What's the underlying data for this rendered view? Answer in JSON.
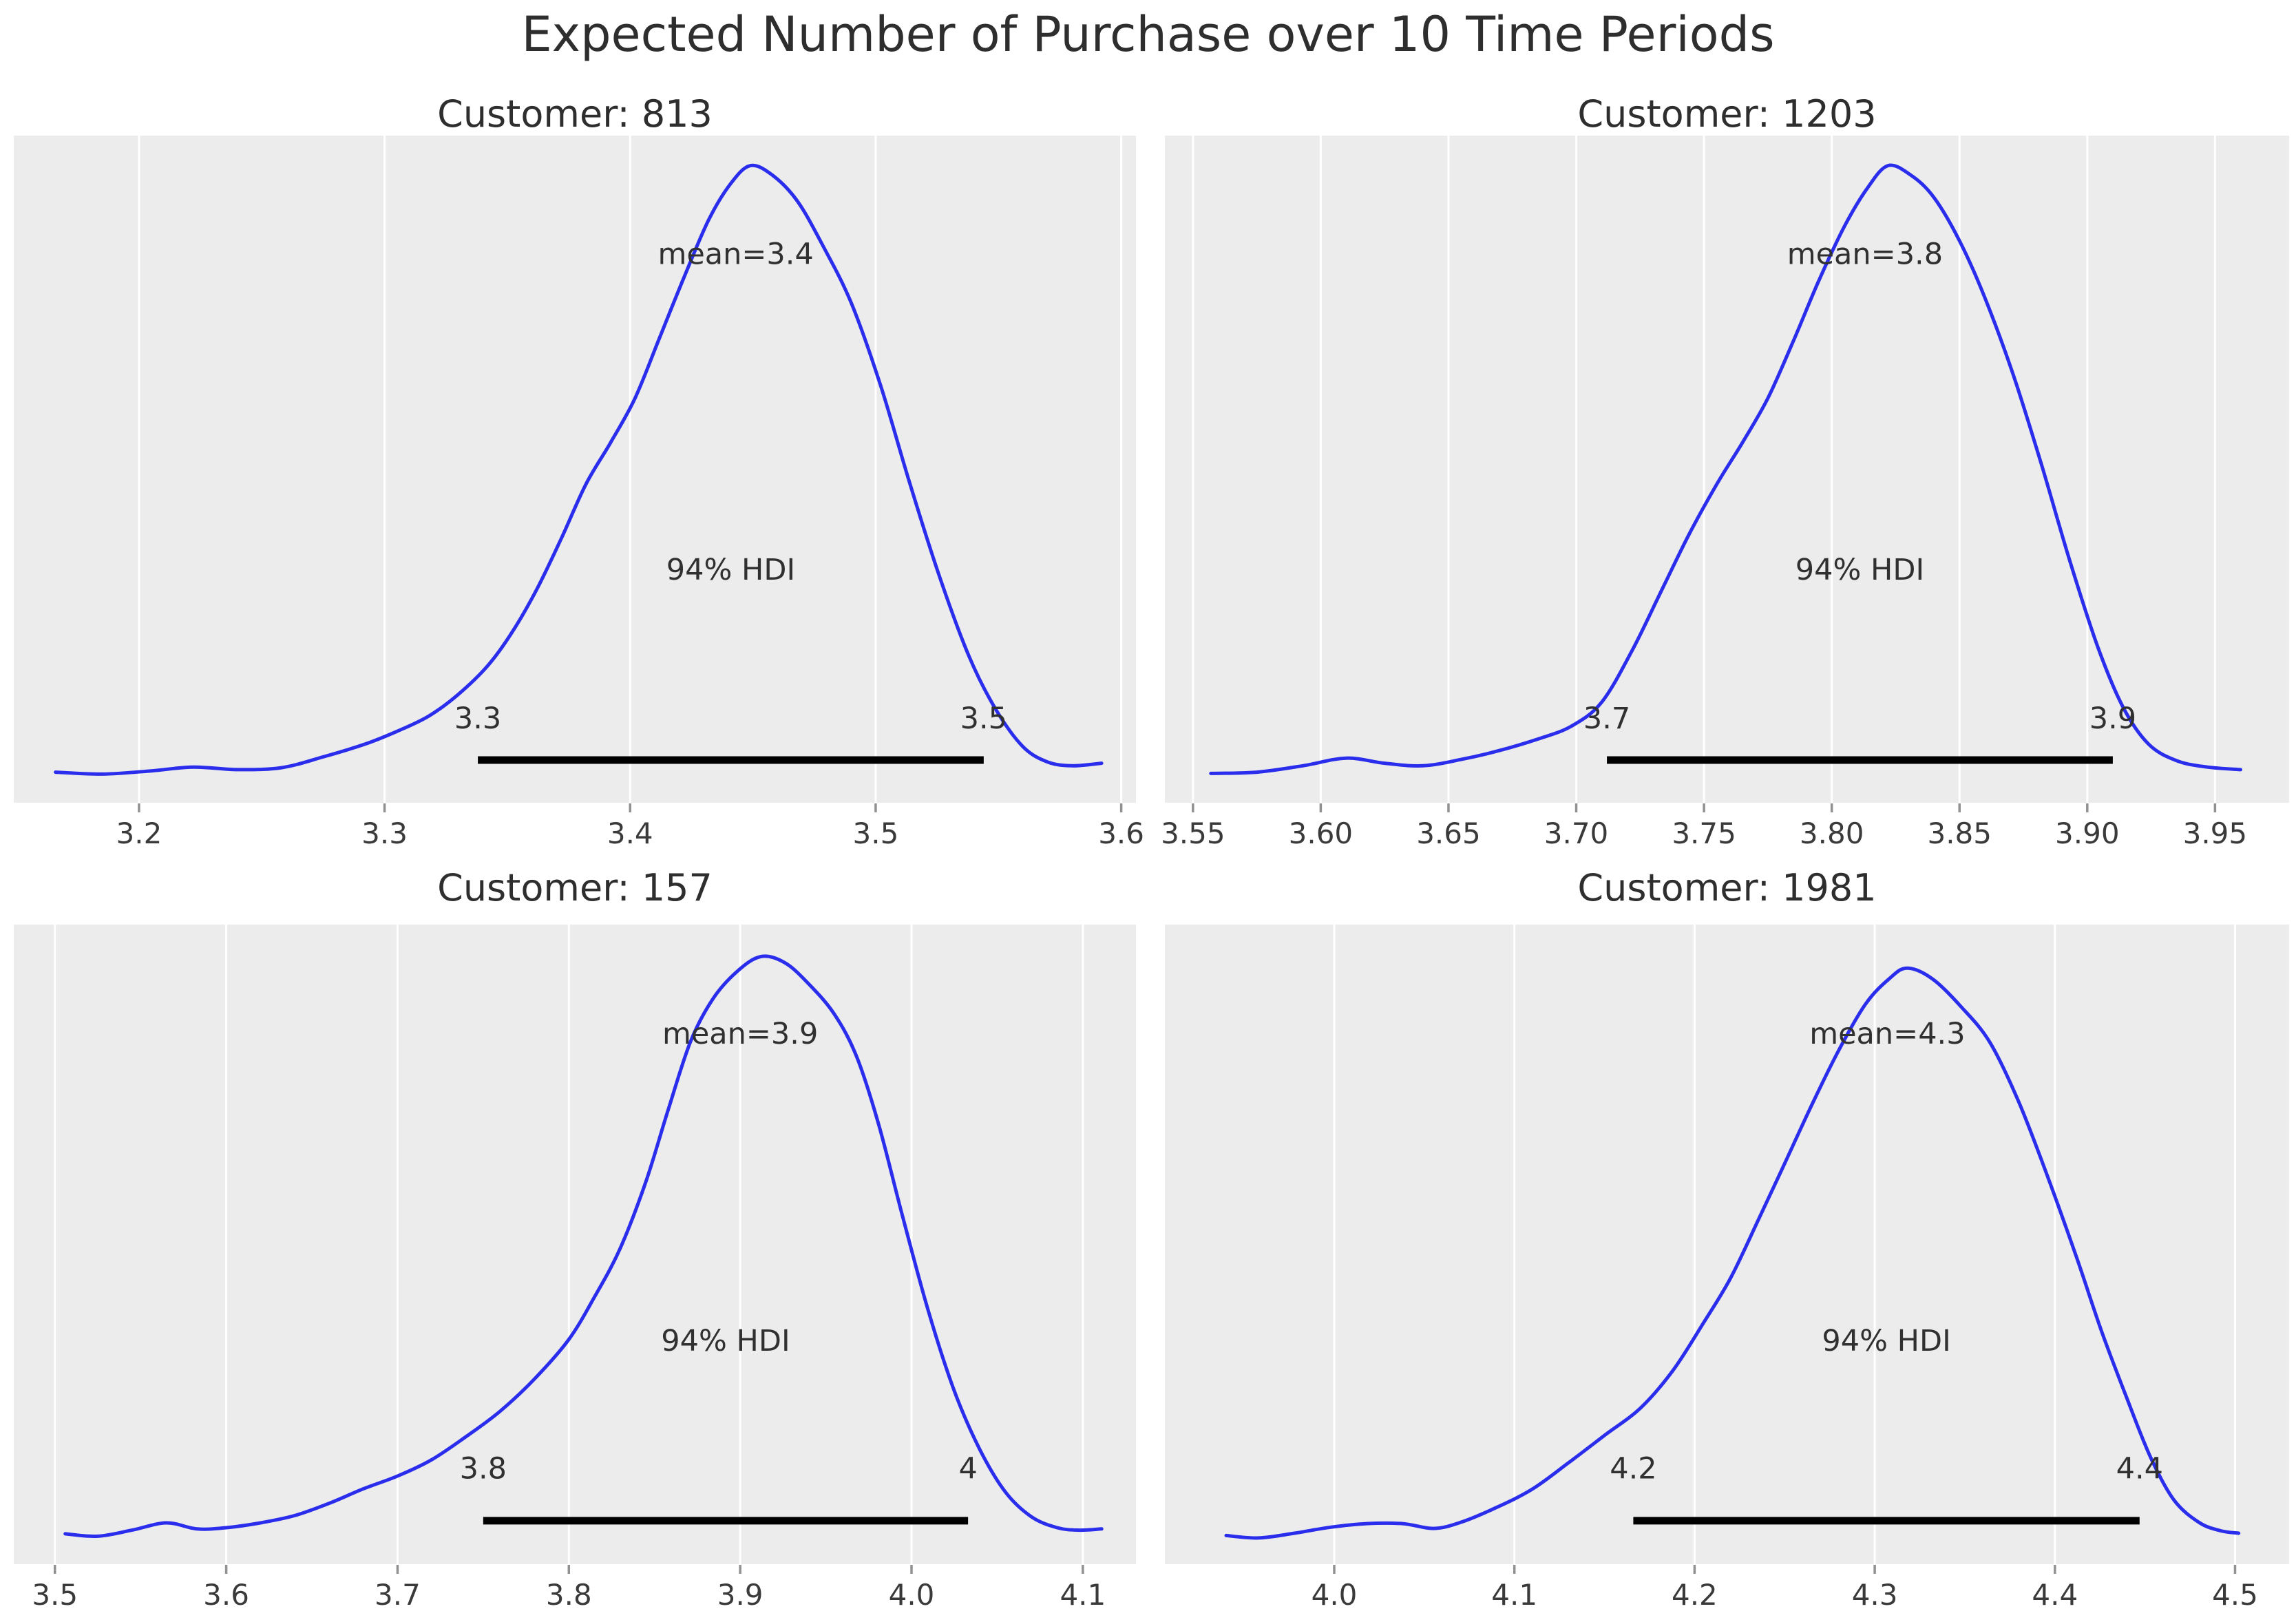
{
  "style": {
    "figure_bg": "#ffffff",
    "plot_bg": "#ececec",
    "grid_color": "#ffffff",
    "curve_color": "#2a2eec",
    "hdi_bar_color": "#000000",
    "title_color": "#2e2e2e",
    "annotation_color": "#303030",
    "tick_mark_color": "#919191",
    "tick_label_color": "#3a3a3a"
  },
  "chart_data": {
    "type": "line",
    "kind": "posterior-kde-grid",
    "figure_title": "Expected Number of Purchase over 10 Time Periods",
    "rows": 2,
    "cols": 2,
    "grid": "vertical-only",
    "subplots": [
      {
        "title": "Customer: 813",
        "mean_label": "mean=3.4",
        "mean_x": 3.443,
        "hdi": {
          "label": "94% HDI",
          "lower": 3.338,
          "upper": 3.544,
          "lower_label": "3.3",
          "upper_label": "3.5"
        },
        "xlim": [
          3.149,
          3.606
        ],
        "xticks": [
          {
            "v": 3.2,
            "label": "3.2"
          },
          {
            "v": 3.3,
            "label": "3.3"
          },
          {
            "v": 3.4,
            "label": "3.4"
          },
          {
            "v": 3.5,
            "label": "3.5"
          },
          {
            "v": 3.6,
            "label": "3.6"
          }
        ],
        "height_frac": 0.955,
        "curve": [
          [
            3.166,
            0.048
          ],
          [
            3.185,
            0.045
          ],
          [
            3.205,
            0.05
          ],
          [
            3.222,
            0.056
          ],
          [
            3.24,
            0.052
          ],
          [
            3.258,
            0.055
          ],
          [
            3.275,
            0.072
          ],
          [
            3.292,
            0.092
          ],
          [
            3.305,
            0.112
          ],
          [
            3.318,
            0.136
          ],
          [
            3.33,
            0.17
          ],
          [
            3.342,
            0.215
          ],
          [
            3.352,
            0.268
          ],
          [
            3.362,
            0.335
          ],
          [
            3.372,
            0.415
          ],
          [
            3.382,
            0.5
          ],
          [
            3.392,
            0.565
          ],
          [
            3.402,
            0.635
          ],
          [
            3.412,
            0.73
          ],
          [
            3.422,
            0.825
          ],
          [
            3.432,
            0.915
          ],
          [
            3.441,
            0.972
          ],
          [
            3.449,
            1.0
          ],
          [
            3.458,
            0.985
          ],
          [
            3.468,
            0.945
          ],
          [
            3.478,
            0.878
          ],
          [
            3.49,
            0.785
          ],
          [
            3.502,
            0.655
          ],
          [
            3.514,
            0.5
          ],
          [
            3.526,
            0.355
          ],
          [
            3.538,
            0.23
          ],
          [
            3.549,
            0.146
          ],
          [
            3.56,
            0.088
          ],
          [
            3.57,
            0.064
          ],
          [
            3.58,
            0.058
          ],
          [
            3.592,
            0.062
          ]
        ]
      },
      {
        "title": "Customer: 1203",
        "mean_label": "mean=3.8",
        "mean_x": 3.813,
        "hdi": {
          "label": "94% HDI",
          "lower": 3.712,
          "upper": 3.91,
          "lower_label": "3.7",
          "upper_label": "3.9"
        },
        "xlim": [
          3.539,
          3.979
        ],
        "xticks": [
          {
            "v": 3.55,
            "label": "3.55"
          },
          {
            "v": 3.6,
            "label": "3.60"
          },
          {
            "v": 3.65,
            "label": "3.65"
          },
          {
            "v": 3.7,
            "label": "3.70"
          },
          {
            "v": 3.75,
            "label": "3.75"
          },
          {
            "v": 3.8,
            "label": "3.80"
          },
          {
            "v": 3.85,
            "label": "3.85"
          },
          {
            "v": 3.9,
            "label": "3.90"
          },
          {
            "v": 3.95,
            "label": "3.95"
          }
        ],
        "height_frac": 0.955,
        "curve": [
          [
            3.557,
            0.046
          ],
          [
            3.575,
            0.048
          ],
          [
            3.593,
            0.058
          ],
          [
            3.61,
            0.07
          ],
          [
            3.625,
            0.062
          ],
          [
            3.64,
            0.058
          ],
          [
            3.655,
            0.068
          ],
          [
            3.67,
            0.082
          ],
          [
            3.685,
            0.1
          ],
          [
            3.698,
            0.12
          ],
          [
            3.71,
            0.158
          ],
          [
            3.722,
            0.24
          ],
          [
            3.733,
            0.33
          ],
          [
            3.744,
            0.42
          ],
          [
            3.755,
            0.5
          ],
          [
            3.765,
            0.565
          ],
          [
            3.775,
            0.635
          ],
          [
            3.785,
            0.725
          ],
          [
            3.795,
            0.82
          ],
          [
            3.805,
            0.905
          ],
          [
            3.814,
            0.965
          ],
          [
            3.822,
            1.0
          ],
          [
            3.831,
            0.985
          ],
          [
            3.84,
            0.95
          ],
          [
            3.85,
            0.882
          ],
          [
            3.86,
            0.792
          ],
          [
            3.871,
            0.672
          ],
          [
            3.882,
            0.532
          ],
          [
            3.893,
            0.382
          ],
          [
            3.904,
            0.246
          ],
          [
            3.914,
            0.15
          ],
          [
            3.924,
            0.092
          ],
          [
            3.935,
            0.066
          ],
          [
            3.947,
            0.056
          ],
          [
            3.96,
            0.052
          ]
        ]
      },
      {
        "title": "Customer: 157",
        "mean_label": "mean=3.9",
        "mean_x": 3.9,
        "hdi": {
          "label": "94% HDI",
          "lower": 3.75,
          "upper": 4.033,
          "lower_label": "3.8",
          "upper_label": "4"
        },
        "xlim": [
          3.476,
          4.131
        ],
        "xticks": [
          {
            "v": 3.5,
            "label": "3.5"
          },
          {
            "v": 3.6,
            "label": "3.6"
          },
          {
            "v": 3.7,
            "label": "3.7"
          },
          {
            "v": 3.8,
            "label": "3.8"
          },
          {
            "v": 3.9,
            "label": "3.9"
          },
          {
            "v": 4.0,
            "label": "4.0"
          },
          {
            "v": 4.1,
            "label": "4.1"
          }
        ],
        "height_frac": 0.95,
        "curve": [
          [
            3.506,
            0.05
          ],
          [
            3.525,
            0.046
          ],
          [
            3.545,
            0.056
          ],
          [
            3.565,
            0.068
          ],
          [
            3.583,
            0.058
          ],
          [
            3.6,
            0.06
          ],
          [
            3.62,
            0.068
          ],
          [
            3.64,
            0.08
          ],
          [
            3.66,
            0.1
          ],
          [
            3.68,
            0.124
          ],
          [
            3.7,
            0.145
          ],
          [
            3.72,
            0.172
          ],
          [
            3.74,
            0.21
          ],
          [
            3.76,
            0.252
          ],
          [
            3.78,
            0.305
          ],
          [
            3.8,
            0.37
          ],
          [
            3.815,
            0.44
          ],
          [
            3.83,
            0.52
          ],
          [
            3.845,
            0.63
          ],
          [
            3.858,
            0.748
          ],
          [
            3.871,
            0.86
          ],
          [
            3.884,
            0.93
          ],
          [
            3.898,
            0.975
          ],
          [
            3.912,
            1.0
          ],
          [
            3.926,
            0.99
          ],
          [
            3.94,
            0.955
          ],
          [
            3.955,
            0.905
          ],
          [
            3.968,
            0.835
          ],
          [
            3.981,
            0.722
          ],
          [
            3.995,
            0.57
          ],
          [
            4.01,
            0.415
          ],
          [
            4.025,
            0.285
          ],
          [
            4.04,
            0.188
          ],
          [
            4.055,
            0.118
          ],
          [
            4.07,
            0.078
          ],
          [
            4.085,
            0.06
          ],
          [
            4.098,
            0.056
          ],
          [
            4.111,
            0.058
          ]
        ]
      },
      {
        "title": "Customer: 1981",
        "mean_label": "mean=4.3",
        "mean_x": 4.307,
        "hdi": {
          "label": "94% HDI",
          "lower": 4.166,
          "upper": 4.447,
          "lower_label": "4.2",
          "upper_label": "4.4"
        },
        "xlim": [
          3.906,
          4.53
        ],
        "xticks": [
          {
            "v": 4.0,
            "label": "4.0"
          },
          {
            "v": 4.1,
            "label": "4.1"
          },
          {
            "v": 4.2,
            "label": "4.2"
          },
          {
            "v": 4.3,
            "label": "4.3"
          },
          {
            "v": 4.4,
            "label": "4.4"
          },
          {
            "v": 4.5,
            "label": "4.5"
          }
        ],
        "height_frac": 0.932,
        "curve": [
          [
            3.94,
            0.048
          ],
          [
            3.958,
            0.044
          ],
          [
            3.978,
            0.052
          ],
          [
            3.998,
            0.062
          ],
          [
            4.018,
            0.068
          ],
          [
            4.038,
            0.068
          ],
          [
            4.055,
            0.06
          ],
          [
            4.07,
            0.07
          ],
          [
            4.09,
            0.095
          ],
          [
            4.11,
            0.126
          ],
          [
            4.13,
            0.17
          ],
          [
            4.15,
            0.216
          ],
          [
            4.17,
            0.262
          ],
          [
            4.188,
            0.325
          ],
          [
            4.205,
            0.405
          ],
          [
            4.22,
            0.48
          ],
          [
            4.235,
            0.575
          ],
          [
            4.25,
            0.672
          ],
          [
            4.265,
            0.77
          ],
          [
            4.28,
            0.862
          ],
          [
            4.295,
            0.94
          ],
          [
            4.308,
            0.982
          ],
          [
            4.318,
            1.0
          ],
          [
            4.332,
            0.982
          ],
          [
            4.348,
            0.935
          ],
          [
            4.364,
            0.875
          ],
          [
            4.38,
            0.775
          ],
          [
            4.396,
            0.65
          ],
          [
            4.412,
            0.515
          ],
          [
            4.426,
            0.39
          ],
          [
            4.44,
            0.278
          ],
          [
            4.453,
            0.18
          ],
          [
            4.466,
            0.108
          ],
          [
            4.48,
            0.07
          ],
          [
            4.492,
            0.056
          ],
          [
            4.502,
            0.052
          ]
        ]
      }
    ]
  }
}
